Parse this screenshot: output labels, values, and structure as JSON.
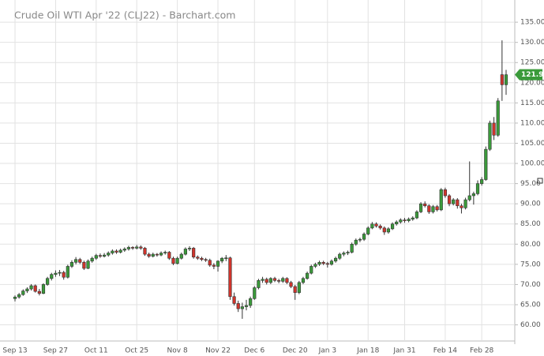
{
  "chart_data": {
    "type": "candlestick",
    "title": "Crude Oil WTI Apr '22 (CLJ22) - Barchart.com",
    "up_color": "#3a9a3a",
    "down_color": "#d0342c",
    "grid": true,
    "ylim": [
      56,
      140.5
    ],
    "yticks": [
      {
        "value": 60,
        "label": "60.00"
      },
      {
        "value": 65,
        "label": "65.00"
      },
      {
        "value": 70,
        "label": "70.00"
      },
      {
        "value": 75,
        "label": "75.00"
      },
      {
        "value": 80,
        "label": "80.00"
      },
      {
        "value": 85,
        "label": "85.00"
      },
      {
        "value": 90,
        "label": "90.00"
      },
      {
        "value": 95,
        "label": "95.00"
      },
      {
        "value": 100,
        "label": "100.00"
      },
      {
        "value": 105,
        "label": "105.00"
      },
      {
        "value": 110,
        "label": "110.00"
      },
      {
        "value": 115,
        "label": "115.00"
      },
      {
        "value": 120,
        "label": "120.00"
      },
      {
        "value": 125,
        "label": "125.00"
      },
      {
        "value": 130,
        "label": "130.00"
      },
      {
        "value": 135,
        "label": "135.00"
      }
    ],
    "categories": [
      "Sep 13",
      null,
      null,
      null,
      null,
      null,
      null,
      null,
      null,
      null,
      "Sep 27",
      null,
      null,
      null,
      null,
      null,
      null,
      null,
      null,
      null,
      "Oct 11",
      null,
      null,
      null,
      null,
      null,
      null,
      null,
      null,
      null,
      "Oct 25",
      null,
      null,
      null,
      null,
      null,
      null,
      null,
      null,
      null,
      "Nov 8",
      null,
      null,
      null,
      null,
      null,
      null,
      null,
      null,
      null,
      "Nov 22",
      null,
      null,
      null,
      null,
      null,
      null,
      null,
      null,
      "Dec 6",
      null,
      null,
      null,
      null,
      null,
      null,
      null,
      null,
      null,
      "Dec 20",
      null,
      null,
      null,
      null,
      null,
      null,
      null,
      "Jan 3",
      null,
      null,
      null,
      null,
      null,
      null,
      null,
      null,
      null,
      "Jan 18",
      null,
      null,
      null,
      null,
      null,
      null,
      null,
      null,
      "Jan 31",
      null,
      null,
      null,
      null,
      null,
      null,
      null,
      null,
      null,
      "Feb 14",
      null,
      null,
      null,
      null,
      null,
      null,
      null,
      null,
      "Feb 28",
      null,
      null,
      null,
      null,
      null,
      null
    ],
    "candles": [
      [
        66.5,
        67.3,
        65.8,
        66.9
      ],
      [
        66.9,
        67.9,
        66.5,
        67.5
      ],
      [
        67.5,
        68.8,
        67.2,
        68.4
      ],
      [
        68.4,
        69.3,
        67.9,
        68.9
      ],
      [
        68.9,
        70.1,
        68.5,
        69.7
      ],
      [
        69.7,
        70.0,
        68.0,
        68.3
      ],
      [
        68.3,
        68.9,
        67.3,
        67.8
      ],
      [
        67.8,
        70.3,
        67.6,
        70.0
      ],
      [
        70.0,
        71.9,
        69.7,
        71.5
      ],
      [
        71.5,
        72.9,
        71.0,
        72.5
      ],
      [
        72.5,
        73.5,
        71.9,
        72.8
      ],
      [
        72.8,
        73.6,
        72.1,
        73.0
      ],
      [
        73.0,
        73.4,
        71.2,
        71.8
      ],
      [
        71.8,
        74.9,
        71.5,
        74.5
      ],
      [
        74.5,
        76.0,
        74.1,
        75.5
      ],
      [
        75.5,
        76.8,
        75.0,
        76.2
      ],
      [
        76.2,
        76.6,
        75.1,
        75.5
      ],
      [
        75.5,
        75.9,
        73.6,
        74.0
      ],
      [
        74.0,
        76.2,
        73.8,
        75.8
      ],
      [
        75.8,
        76.9,
        75.4,
        76.5
      ],
      [
        76.5,
        77.6,
        76.1,
        77.2
      ],
      [
        77.2,
        77.7,
        76.6,
        77.0
      ],
      [
        77.0,
        77.8,
        76.7,
        77.3
      ],
      [
        77.3,
        78.2,
        76.9,
        77.8
      ],
      [
        77.8,
        78.7,
        77.4,
        78.3
      ],
      [
        78.3,
        78.7,
        77.6,
        78.0
      ],
      [
        78.0,
        78.9,
        77.7,
        78.5
      ],
      [
        78.5,
        79.2,
        78.1,
        78.8
      ],
      [
        78.8,
        79.6,
        78.4,
        79.2
      ],
      [
        79.2,
        79.5,
        78.6,
        79.0
      ],
      [
        79.0,
        79.8,
        78.7,
        79.3
      ],
      [
        79.3,
        79.7,
        78.6,
        79.0
      ],
      [
        79.0,
        79.3,
        77.1,
        77.5
      ],
      [
        77.5,
        77.9,
        76.6,
        77.0
      ],
      [
        77.0,
        77.9,
        76.7,
        77.5
      ],
      [
        77.5,
        77.8,
        76.9,
        77.3
      ],
      [
        77.3,
        78.2,
        77.0,
        77.8
      ],
      [
        77.8,
        78.4,
        77.4,
        78.0
      ],
      [
        78.0,
        78.3,
        76.1,
        76.5
      ],
      [
        76.5,
        76.9,
        74.8,
        75.2
      ],
      [
        75.2,
        76.9,
        75.0,
        76.5
      ],
      [
        76.5,
        77.9,
        76.2,
        77.5
      ],
      [
        77.5,
        79.2,
        77.2,
        78.8
      ],
      [
        78.8,
        79.5,
        78.3,
        79.0
      ],
      [
        79.0,
        79.3,
        76.4,
        76.8
      ],
      [
        76.8,
        77.2,
        76.1,
        76.5
      ],
      [
        76.5,
        76.9,
        75.8,
        76.2
      ],
      [
        76.2,
        76.6,
        75.6,
        76.0
      ],
      [
        76.0,
        76.4,
        74.4,
        74.8
      ],
      [
        74.8,
        75.3,
        73.8,
        74.5
      ],
      [
        74.5,
        76.0,
        73.2,
        75.8
      ],
      [
        75.8,
        76.8,
        75.3,
        76.5
      ],
      [
        76.5,
        77.3,
        75.8,
        76.6
      ],
      [
        76.6,
        76.9,
        66.2,
        67.0
      ],
      [
        67.0,
        68.0,
        64.8,
        65.3
      ],
      [
        65.3,
        66.0,
        63.2,
        64.0
      ],
      [
        64.0,
        65.5,
        61.5,
        64.5
      ],
      [
        64.5,
        66.2,
        63.6,
        64.8
      ],
      [
        64.8,
        67.0,
        64.2,
        66.5
      ],
      [
        66.5,
        69.6,
        66.2,
        69.2
      ],
      [
        69.2,
        71.4,
        68.8,
        71.0
      ],
      [
        71.0,
        71.9,
        70.4,
        71.3
      ],
      [
        71.3,
        71.7,
        70.0,
        70.5
      ],
      [
        70.5,
        71.8,
        70.1,
        71.5
      ],
      [
        71.5,
        71.9,
        70.6,
        71.0
      ],
      [
        71.0,
        71.4,
        70.3,
        70.8
      ],
      [
        70.8,
        71.9,
        70.4,
        71.5
      ],
      [
        71.5,
        71.8,
        70.1,
        70.5
      ],
      [
        70.5,
        70.9,
        69.1,
        69.5
      ],
      [
        69.5,
        69.9,
        66.2,
        68.0
      ],
      [
        68.0,
        70.9,
        67.6,
        70.5
      ],
      [
        70.5,
        71.9,
        70.1,
        71.5
      ],
      [
        71.5,
        73.2,
        71.2,
        72.8
      ],
      [
        72.8,
        74.9,
        72.5,
        74.5
      ],
      [
        74.5,
        75.4,
        74.1,
        75.0
      ],
      [
        75.0,
        75.9,
        74.6,
        75.5
      ],
      [
        75.5,
        75.9,
        74.8,
        75.2
      ],
      [
        75.2,
        75.6,
        74.2,
        75.0
      ],
      [
        75.0,
        76.2,
        74.7,
        75.8
      ],
      [
        75.8,
        76.9,
        75.4,
        76.5
      ],
      [
        76.5,
        77.9,
        76.1,
        77.5
      ],
      [
        77.5,
        78.2,
        77.0,
        77.8
      ],
      [
        77.8,
        78.4,
        77.3,
        78.0
      ],
      [
        78.0,
        80.4,
        77.7,
        80.0
      ],
      [
        80.0,
        81.4,
        79.6,
        81.0
      ],
      [
        81.0,
        81.6,
        80.5,
        81.2
      ],
      [
        81.2,
        82.9,
        80.8,
        82.5
      ],
      [
        82.5,
        84.4,
        82.2,
        84.0
      ],
      [
        84.0,
        85.5,
        83.7,
        85.0
      ],
      [
        85.0,
        85.4,
        84.1,
        84.5
      ],
      [
        84.5,
        84.9,
        83.6,
        84.0
      ],
      [
        84.0,
        84.4,
        82.3,
        83.0
      ],
      [
        83.0,
        84.2,
        82.6,
        83.8
      ],
      [
        83.8,
        85.4,
        83.5,
        85.0
      ],
      [
        85.0,
        85.9,
        84.6,
        85.5
      ],
      [
        85.5,
        86.4,
        85.1,
        86.0
      ],
      [
        86.0,
        86.5,
        85.3,
        85.8
      ],
      [
        85.8,
        86.6,
        85.4,
        86.2
      ],
      [
        86.2,
        86.9,
        85.8,
        86.5
      ],
      [
        86.5,
        88.4,
        86.2,
        88.0
      ],
      [
        88.0,
        90.4,
        87.7,
        90.0
      ],
      [
        90.0,
        90.6,
        89.1,
        89.5
      ],
      [
        89.5,
        89.9,
        87.5,
        88.0
      ],
      [
        88.0,
        89.7,
        87.6,
        89.3
      ],
      [
        89.3,
        89.7,
        88.1,
        88.5
      ],
      [
        88.5,
        93.9,
        88.2,
        93.5
      ],
      [
        93.5,
        94.0,
        91.5,
        92.0
      ],
      [
        92.0,
        92.4,
        89.4,
        90.0
      ],
      [
        90.0,
        91.4,
        89.6,
        91.0
      ],
      [
        91.0,
        91.4,
        88.8,
        89.5
      ],
      [
        89.5,
        90.0,
        87.6,
        89.0
      ],
      [
        89.0,
        91.5,
        88.6,
        91.0
      ],
      [
        91.0,
        100.5,
        90.6,
        92.0
      ],
      [
        92.0,
        93.0,
        89.8,
        92.5
      ],
      [
        92.5,
        95.8,
        92.1,
        95.0
      ],
      [
        95.0,
        96.6,
        94.5,
        96.0
      ],
      [
        96.0,
        104.2,
        95.7,
        103.5
      ],
      [
        103.5,
        110.6,
        103.1,
        110.0
      ],
      [
        110.0,
        111.5,
        105.8,
        107.0
      ],
      [
        107.0,
        116.2,
        106.6,
        115.5
      ],
      [
        122.0,
        130.5,
        115.5,
        119.5
      ],
      [
        119.5,
        123.2,
        117.0,
        121.98
      ]
    ]
  }
}
